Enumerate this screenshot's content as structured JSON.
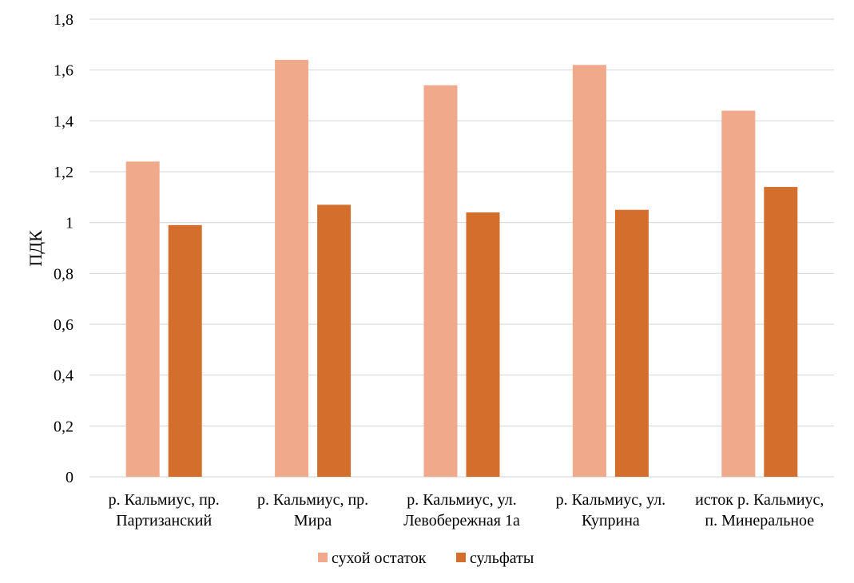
{
  "chart_data": {
    "type": "bar",
    "title": "",
    "xlabel": "",
    "ylabel": "ПДК",
    "ylim": [
      0,
      1.8
    ],
    "yticks": [
      "0",
      "0,2",
      "0,4",
      "0,6",
      "0,8",
      "1",
      "1,2",
      "1,4",
      "1,6",
      "1,8"
    ],
    "grid": true,
    "legend_position": "bottom",
    "categories": [
      [
        "р. Кальмиус, пр.",
        "Партизанский"
      ],
      [
        "р. Кальмиус, пр.",
        "Мира"
      ],
      [
        "р. Кальмиус, ул.",
        "Левобережная 1а"
      ],
      [
        "р. Кальмиус, ул.",
        "Куприна"
      ],
      [
        "исток р. Кальмиус,",
        "п. Минеральное"
      ]
    ],
    "series": [
      {
        "name": "сухой остаток",
        "color": "#f0a98a",
        "values": [
          1.24,
          1.64,
          1.54,
          1.62,
          1.44
        ]
      },
      {
        "name": "сульфаты",
        "color": "#d36e2c",
        "values": [
          0.99,
          1.07,
          1.04,
          1.05,
          1.14
        ]
      }
    ]
  }
}
